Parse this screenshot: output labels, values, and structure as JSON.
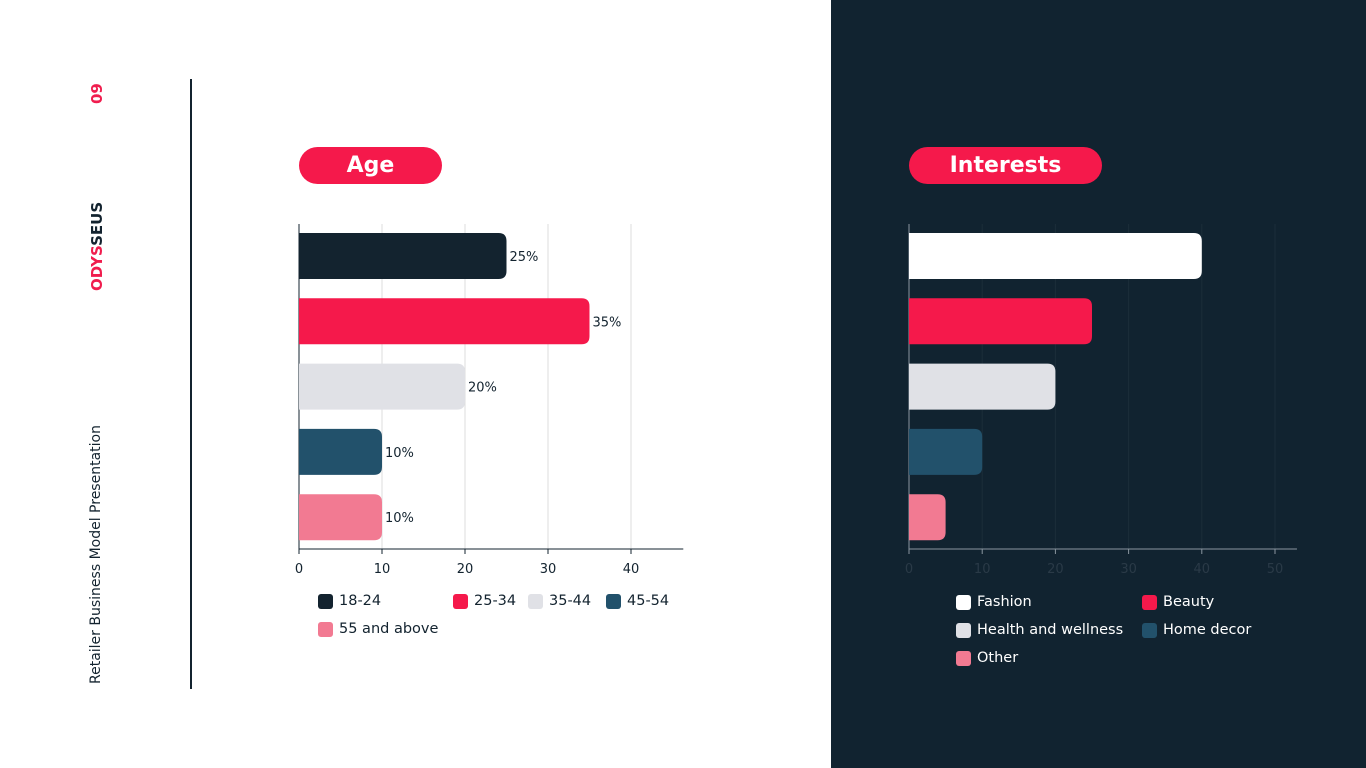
{
  "slide": {
    "page_number": "09",
    "logo_part1": "ODYS",
    "logo_part2": "SEUS",
    "subtitle": "Retailer Business Model Presentation"
  },
  "chart_data": [
    {
      "type": "bar",
      "orientation": "horizontal",
      "title": "Age",
      "categories": [
        "18-24",
        "25-34",
        "35-44",
        "45-54",
        "55 and above"
      ],
      "values": [
        25,
        35,
        20,
        10,
        10
      ],
      "data_labels": [
        "25%",
        "35%",
        "20%",
        "10%",
        "10%"
      ],
      "colors": [
        "#13232f",
        "#f5194b",
        "#e0e1e6",
        "#22516b",
        "#f27a92"
      ],
      "xticks": [
        0,
        10,
        20,
        30,
        40
      ],
      "xlim": [
        0,
        46.3
      ],
      "grid": true,
      "legend": "bottom"
    },
    {
      "type": "bar",
      "orientation": "horizontal",
      "title": "Interests",
      "categories": [
        "Fashion",
        "Beauty",
        "Health and wellness",
        "Home decor",
        "Other"
      ],
      "values": [
        40,
        25,
        20,
        10,
        5
      ],
      "colors": [
        "#ffffff",
        "#f5194b",
        "#e0e1e6",
        "#22516b",
        "#f27a92"
      ],
      "xticks": [
        0,
        10,
        20,
        30,
        40,
        50
      ],
      "xlim": [
        0,
        53
      ],
      "grid": true,
      "legend": "bottom"
    }
  ]
}
